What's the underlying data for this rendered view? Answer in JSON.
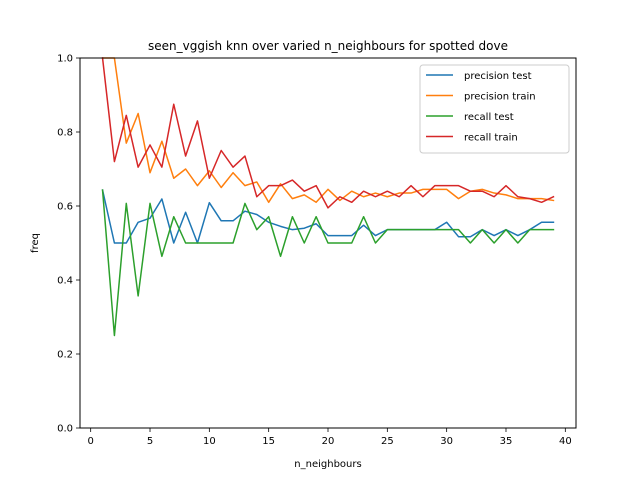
{
  "chart_data": {
    "type": "line",
    "title": "seen_vggish knn over varied n_neighbours for spotted dove",
    "xlabel": "n_neighbours",
    "ylabel": "freq",
    "xlim": [
      -0.9,
      40.9
    ],
    "ylim": [
      0,
      1.0
    ],
    "xticks": [
      0,
      5,
      10,
      15,
      20,
      25,
      30,
      35,
      40
    ],
    "yticks": [
      0.0,
      0.2,
      0.4,
      0.6,
      0.8,
      1.0
    ],
    "grid": false,
    "legend_position": "top-right",
    "x": [
      1,
      2,
      3,
      4,
      5,
      6,
      7,
      8,
      9,
      10,
      11,
      12,
      13,
      14,
      15,
      16,
      17,
      18,
      19,
      20,
      21,
      22,
      23,
      24,
      25,
      26,
      27,
      28,
      29,
      30,
      31,
      32,
      33,
      34,
      35,
      36,
      37,
      38,
      39
    ],
    "series": [
      {
        "name": "precision test",
        "color": "#1f77b4",
        "values": [
          0.643,
          0.5,
          0.5,
          0.556,
          0.567,
          0.619,
          0.5,
          0.583,
          0.5,
          0.609,
          0.56,
          0.56,
          0.586,
          0.577,
          0.556,
          0.545,
          0.536,
          0.54,
          0.552,
          0.52,
          0.52,
          0.52,
          0.548,
          0.52,
          0.536,
          0.536,
          0.536,
          0.536,
          0.536,
          0.556,
          0.517,
          0.517,
          0.536,
          0.52,
          0.536,
          0.52,
          0.536,
          0.556,
          0.556
        ]
      },
      {
        "name": "precision train",
        "color": "#ff7f0e",
        "values": [
          1.0,
          1.0,
          0.77,
          0.85,
          0.69,
          0.775,
          0.675,
          0.7,
          0.655,
          0.695,
          0.65,
          0.69,
          0.655,
          0.665,
          0.61,
          0.66,
          0.62,
          0.63,
          0.61,
          0.645,
          0.615,
          0.64,
          0.625,
          0.635,
          0.625,
          0.635,
          0.635,
          0.645,
          0.645,
          0.645,
          0.62,
          0.64,
          0.645,
          0.635,
          0.63,
          0.62,
          0.62,
          0.62,
          0.615
        ]
      },
      {
        "name": "recall test",
        "color": "#2ca02c",
        "values": [
          0.643,
          0.25,
          0.607,
          0.357,
          0.607,
          0.464,
          0.571,
          0.5,
          0.5,
          0.5,
          0.5,
          0.5,
          0.607,
          0.536,
          0.571,
          0.464,
          0.571,
          0.5,
          0.571,
          0.5,
          0.5,
          0.5,
          0.571,
          0.5,
          0.536,
          0.536,
          0.536,
          0.536,
          0.536,
          0.536,
          0.536,
          0.5,
          0.536,
          0.5,
          0.536,
          0.5,
          0.536,
          0.536,
          0.536
        ]
      },
      {
        "name": "recall train",
        "color": "#d62728",
        "values": [
          1.0,
          0.72,
          0.845,
          0.705,
          0.765,
          0.705,
          0.875,
          0.735,
          0.83,
          0.675,
          0.75,
          0.705,
          0.735,
          0.625,
          0.655,
          0.655,
          0.67,
          0.64,
          0.655,
          0.595,
          0.625,
          0.61,
          0.64,
          0.625,
          0.64,
          0.625,
          0.655,
          0.625,
          0.655,
          0.655,
          0.655,
          0.64,
          0.64,
          0.625,
          0.655,
          0.625,
          0.62,
          0.61,
          0.625
        ]
      }
    ]
  }
}
